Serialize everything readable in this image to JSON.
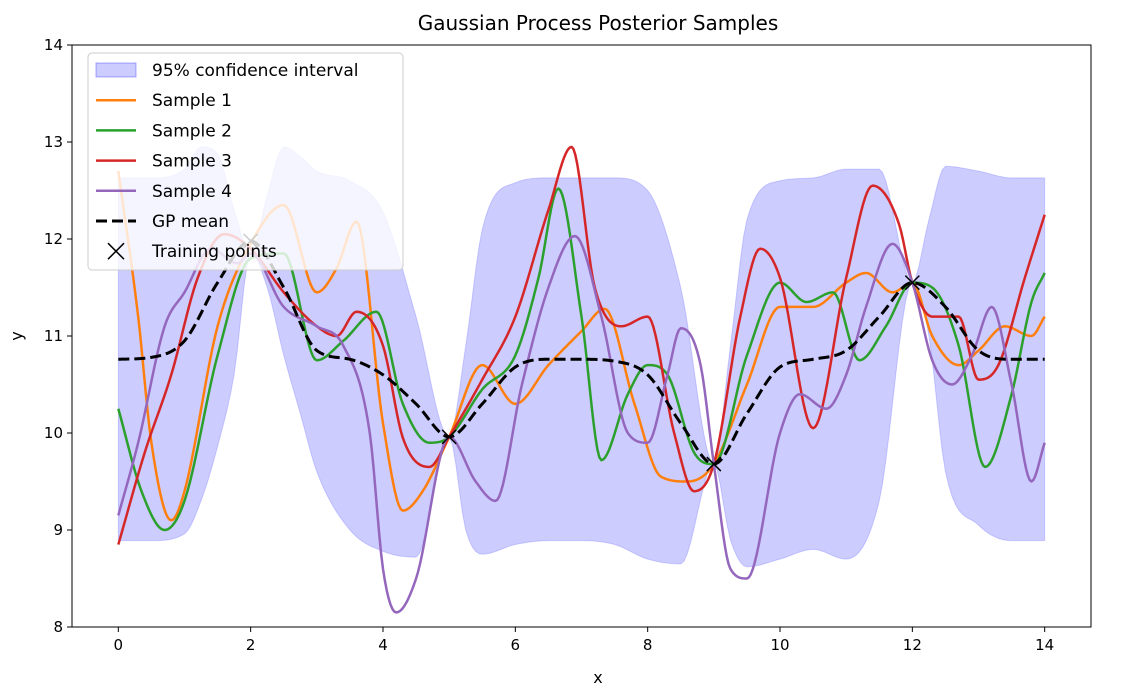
{
  "chart_data": {
    "type": "line",
    "title": "Gaussian Process Posterior Samples",
    "xlabel": "x",
    "ylabel": "y",
    "xlim": [
      -0.7,
      14.7
    ],
    "ylim": [
      8,
      14
    ],
    "xticks": [
      0,
      2,
      4,
      6,
      8,
      10,
      12,
      14
    ],
    "yticks": [
      8,
      9,
      10,
      11,
      12,
      13,
      14
    ],
    "grid": false,
    "legend_position": "top-left",
    "confidence_band": {
      "name": "95% confidence interval",
      "color": "#0000ff",
      "opacity": 0.2,
      "x": [
        0,
        0.5,
        1,
        1.25,
        1.5,
        1.75,
        2,
        2.25,
        2.5,
        2.75,
        3,
        3.5,
        4,
        4.5,
        5,
        5.25,
        5.5,
        6,
        6.5,
        7,
        7.5,
        8,
        8.5,
        9,
        9.25,
        9.5,
        10,
        10.5,
        11,
        11.5,
        12,
        12.25,
        12.5,
        13,
        13.5,
        14
      ],
      "upper": [
        12.63,
        12.63,
        12.72,
        12.95,
        12.88,
        12.3,
        11.85,
        12.45,
        12.95,
        12.85,
        12.7,
        12.6,
        12.28,
        11.2,
        9.96,
        10.9,
        12.1,
        12.58,
        12.63,
        12.63,
        12.63,
        12.5,
        11.5,
        9.68,
        10.9,
        12.2,
        12.6,
        12.63,
        12.72,
        12.72,
        11.55,
        12.2,
        12.75,
        12.7,
        12.63,
        12.63
      ],
      "lower": [
        8.89,
        8.89,
        8.96,
        9.3,
        9.86,
        10.6,
        11.85,
        11.5,
        10.8,
        10.2,
        9.6,
        9.0,
        8.78,
        8.72,
        9.96,
        9.0,
        8.75,
        8.85,
        8.89,
        8.89,
        8.85,
        8.7,
        8.65,
        9.68,
        8.9,
        8.62,
        8.7,
        8.8,
        8.7,
        9.3,
        11.55,
        11.0,
        9.6,
        9.05,
        8.89,
        8.89
      ]
    },
    "series": [
      {
        "name": "Sample 1",
        "color": "#ff7f0e",
        "x": [
          0,
          0.3,
          0.5,
          0.8,
          1.0,
          1.5,
          2.0,
          2.5,
          3.0,
          3.3,
          3.6,
          4.0,
          4.3,
          4.6,
          5.0,
          5.5,
          6.0,
          6.5,
          7.0,
          7.35,
          7.8,
          8.2,
          8.6,
          9.0,
          9.5,
          10.0,
          10.5,
          11.0,
          11.3,
          11.7,
          12.0,
          12.3,
          12.7,
          13.0,
          13.4,
          13.8,
          14.0
        ],
        "y": [
          12.7,
          11.2,
          9.9,
          9.1,
          9.4,
          11.1,
          11.95,
          12.35,
          11.45,
          11.7,
          12.18,
          10.1,
          9.2,
          9.4,
          9.96,
          10.7,
          10.3,
          10.7,
          11.05,
          11.28,
          10.3,
          9.55,
          9.5,
          9.68,
          10.5,
          11.3,
          11.3,
          11.55,
          11.65,
          11.45,
          11.55,
          11.0,
          10.7,
          10.85,
          11.1,
          11.0,
          11.2
        ]
      },
      {
        "name": "Sample 2",
        "color": "#2ca02c",
        "x": [
          0,
          0.35,
          0.7,
          1.0,
          1.5,
          2.0,
          2.5,
          3.0,
          3.4,
          3.9,
          4.3,
          4.7,
          5.0,
          5.5,
          6.0,
          6.35,
          6.65,
          7.0,
          7.3,
          7.7,
          8.0,
          8.3,
          8.7,
          9.0,
          9.5,
          10.0,
          10.4,
          10.8,
          11.2,
          11.6,
          12.0,
          12.3,
          12.7,
          13.1,
          13.5,
          13.8,
          14.0
        ],
        "y": [
          10.25,
          9.4,
          9.0,
          9.3,
          10.8,
          11.8,
          11.85,
          10.75,
          10.95,
          11.25,
          10.3,
          9.9,
          9.96,
          10.45,
          10.8,
          11.6,
          12.52,
          11.2,
          9.72,
          10.4,
          10.7,
          10.6,
          9.8,
          9.68,
          10.8,
          11.55,
          11.35,
          11.45,
          10.75,
          11.1,
          11.55,
          11.5,
          10.9,
          9.65,
          10.4,
          11.35,
          11.65
        ]
      },
      {
        "name": "Sample 3",
        "color": "#d62728",
        "x": [
          0,
          0.4,
          0.8,
          1.2,
          1.6,
          2.0,
          2.5,
          3.0,
          3.3,
          3.6,
          4.0,
          4.3,
          4.7,
          5.0,
          5.5,
          6.0,
          6.5,
          6.85,
          7.2,
          7.6,
          8.0,
          8.4,
          8.7,
          9.0,
          9.4,
          9.7,
          10.0,
          10.5,
          11.0,
          11.4,
          11.8,
          12.0,
          12.3,
          12.7,
          13.0,
          13.3,
          13.7,
          14.0
        ],
        "y": [
          8.85,
          9.8,
          10.6,
          11.6,
          12.05,
          11.9,
          11.45,
          11.1,
          11.0,
          11.25,
          10.9,
          9.95,
          9.65,
          9.96,
          10.55,
          11.2,
          12.3,
          12.95,
          11.5,
          11.1,
          11.2,
          10.0,
          9.4,
          9.68,
          11.2,
          11.9,
          11.6,
          10.05,
          11.6,
          12.55,
          12.15,
          11.55,
          11.2,
          11.2,
          10.55,
          10.7,
          11.6,
          12.25
        ]
      },
      {
        "name": "Sample 4",
        "color": "#9467bd",
        "x": [
          0,
          0.3,
          0.7,
          1.0,
          1.4,
          1.8,
          2.0,
          2.5,
          3.0,
          3.4,
          3.8,
          4.0,
          4.2,
          4.5,
          5.0,
          5.4,
          5.7,
          6.1,
          6.5,
          6.9,
          7.3,
          7.7,
          8.0,
          8.3,
          8.5,
          8.8,
          9.0,
          9.25,
          9.5,
          10.0,
          10.3,
          10.7,
          11.0,
          11.3,
          11.7,
          12.0,
          12.3,
          12.6,
          12.9,
          13.2,
          13.5,
          13.8,
          14.0
        ],
        "y": [
          9.15,
          9.9,
          11.1,
          11.45,
          11.9,
          11.75,
          11.85,
          11.3,
          11.1,
          10.9,
          10.0,
          8.6,
          8.15,
          8.5,
          9.96,
          9.5,
          9.3,
          10.5,
          11.5,
          12.03,
          11.2,
          10.0,
          9.9,
          10.6,
          11.08,
          10.7,
          9.68,
          8.6,
          8.5,
          10.0,
          10.4,
          10.25,
          10.6,
          11.3,
          11.95,
          11.55,
          10.75,
          10.5,
          10.8,
          11.3,
          10.5,
          9.5,
          9.9
        ]
      }
    ],
    "mean": {
      "name": "GP mean",
      "color": "#000000",
      "x": [
        0,
        0.5,
        1.0,
        1.5,
        2.0,
        2.5,
        3.0,
        3.5,
        4.0,
        4.5,
        5.0,
        5.5,
        6.0,
        6.5,
        7.0,
        7.5,
        8.0,
        8.5,
        9.0,
        9.5,
        10.0,
        10.5,
        11.0,
        11.5,
        12.0,
        12.5,
        13.0,
        13.5,
        14.0
      ],
      "y": [
        10.76,
        10.78,
        10.95,
        11.55,
        11.98,
        11.5,
        10.85,
        10.76,
        10.6,
        10.3,
        9.96,
        10.3,
        10.68,
        10.76,
        10.76,
        10.74,
        10.6,
        10.1,
        9.68,
        10.2,
        10.68,
        10.76,
        10.85,
        11.2,
        11.55,
        11.3,
        10.85,
        10.76,
        10.76
      ]
    },
    "training_points": {
      "name": "Training points",
      "x": [
        2,
        5,
        9,
        12
      ],
      "y": [
        11.98,
        9.96,
        9.68,
        11.55
      ]
    }
  }
}
